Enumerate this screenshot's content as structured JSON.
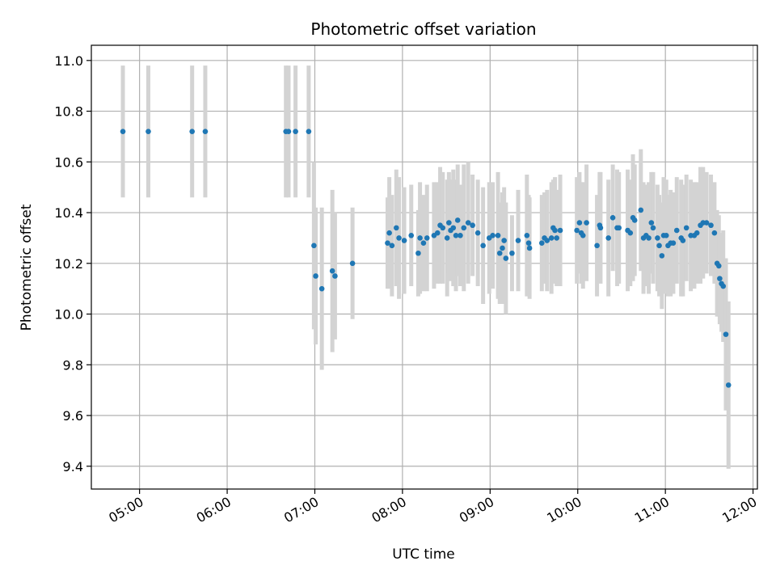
{
  "chart_data": {
    "type": "scatter",
    "title": "Photometric offset variation",
    "xlabel": "UTC time",
    "ylabel": "Photometric offset",
    "x_unit": "hours UTC",
    "xlim": [
      4.45,
      12.05
    ],
    "ylim": [
      9.31,
      11.06
    ],
    "x_ticks": [
      5,
      6,
      7,
      8,
      9,
      10,
      11,
      12
    ],
    "x_tick_labels": [
      "05:00",
      "06:00",
      "07:00",
      "08:00",
      "09:00",
      "10:00",
      "11:00",
      "12:00"
    ],
    "y_ticks": [
      9.4,
      9.6,
      9.8,
      10.0,
      10.2,
      10.4,
      10.6,
      10.8,
      11.0
    ],
    "y_tick_labels": [
      "9.4",
      "9.6",
      "9.8",
      "10.0",
      "10.2",
      "10.4",
      "10.6",
      "10.8",
      "11.0"
    ],
    "grid": true,
    "colors": {
      "point": "#1f77b4",
      "errorbar": "#d3d3d3",
      "grid": "#b0b0b0"
    },
    "points": [
      [
        4.81,
        10.72,
        0.26
      ],
      [
        5.1,
        10.72,
        0.26
      ],
      [
        5.6,
        10.72,
        0.26
      ],
      [
        5.75,
        10.72,
        0.26
      ],
      [
        6.67,
        10.72,
        0.26
      ],
      [
        6.7,
        10.72,
        0.26
      ],
      [
        6.78,
        10.72,
        0.26
      ],
      [
        6.93,
        10.72,
        0.26
      ],
      [
        6.99,
        10.27,
        0.33
      ],
      [
        7.01,
        10.15,
        0.27
      ],
      [
        7.08,
        10.1,
        0.32
      ],
      [
        7.2,
        10.17,
        0.32
      ],
      [
        7.23,
        10.15,
        0.25
      ],
      [
        7.43,
        10.2,
        0.22
      ],
      [
        7.83,
        10.28,
        0.18
      ],
      [
        7.85,
        10.32,
        0.22
      ],
      [
        7.88,
        10.27,
        0.2
      ],
      [
        7.93,
        10.34,
        0.23
      ],
      [
        7.96,
        10.3,
        0.24
      ],
      [
        8.02,
        10.29,
        0.21
      ],
      [
        8.1,
        10.31,
        0.2
      ],
      [
        8.18,
        10.24,
        0.17
      ],
      [
        8.2,
        10.3,
        0.22
      ],
      [
        8.24,
        10.28,
        0.19
      ],
      [
        8.28,
        10.3,
        0.21
      ],
      [
        8.36,
        10.31,
        0.21
      ],
      [
        8.4,
        10.32,
        0.2
      ],
      [
        8.43,
        10.35,
        0.23
      ],
      [
        8.46,
        10.34,
        0.22
      ],
      [
        8.51,
        10.3,
        0.23
      ],
      [
        8.53,
        10.36,
        0.2
      ],
      [
        8.55,
        10.33,
        0.2
      ],
      [
        8.58,
        10.34,
        0.23
      ],
      [
        8.61,
        10.31,
        0.22
      ],
      [
        8.63,
        10.37,
        0.22
      ],
      [
        8.66,
        10.31,
        0.2
      ],
      [
        8.7,
        10.34,
        0.25
      ],
      [
        8.75,
        10.36,
        0.24
      ],
      [
        8.8,
        10.35,
        0.2
      ],
      [
        8.86,
        10.32,
        0.21
      ],
      [
        8.92,
        10.27,
        0.23
      ],
      [
        8.99,
        10.3,
        0.22
      ],
      [
        9.03,
        10.31,
        0.21
      ],
      [
        9.09,
        10.31,
        0.25
      ],
      [
        9.11,
        10.24,
        0.2
      ],
      [
        9.14,
        10.26,
        0.22
      ],
      [
        9.16,
        10.29,
        0.21
      ],
      [
        9.18,
        10.22,
        0.22
      ],
      [
        9.25,
        10.24,
        0.15
      ],
      [
        9.32,
        10.29,
        0.2
      ],
      [
        9.42,
        10.31,
        0.24
      ],
      [
        9.44,
        10.28,
        0.19
      ],
      [
        9.45,
        10.26,
        0.2
      ],
      [
        9.59,
        10.28,
        0.19
      ],
      [
        9.62,
        10.3,
        0.18
      ],
      [
        9.65,
        10.29,
        0.2
      ],
      [
        9.7,
        10.3,
        0.22
      ],
      [
        9.72,
        10.34,
        0.19
      ],
      [
        9.74,
        10.33,
        0.21
      ],
      [
        9.76,
        10.3,
        0.19
      ],
      [
        9.8,
        10.33,
        0.22
      ],
      [
        9.99,
        10.33,
        0.21
      ],
      [
        10.02,
        10.36,
        0.2
      ],
      [
        10.04,
        10.32,
        0.2
      ],
      [
        10.06,
        10.31,
        0.21
      ],
      [
        10.1,
        10.36,
        0.23
      ],
      [
        10.22,
        10.27,
        0.2
      ],
      [
        10.25,
        10.35,
        0.21
      ],
      [
        10.26,
        10.34,
        0.22
      ],
      [
        10.35,
        10.3,
        0.23
      ],
      [
        10.4,
        10.38,
        0.21
      ],
      [
        10.45,
        10.34,
        0.23
      ],
      [
        10.47,
        10.34,
        0.22
      ],
      [
        10.57,
        10.33,
        0.24
      ],
      [
        10.6,
        10.32,
        0.21
      ],
      [
        10.63,
        10.38,
        0.25
      ],
      [
        10.65,
        10.37,
        0.22
      ],
      [
        10.72,
        10.41,
        0.24
      ],
      [
        10.75,
        10.3,
        0.22
      ],
      [
        10.78,
        10.31,
        0.2
      ],
      [
        10.81,
        10.3,
        0.22
      ],
      [
        10.84,
        10.36,
        0.2
      ],
      [
        10.86,
        10.34,
        0.22
      ],
      [
        10.91,
        10.3,
        0.21
      ],
      [
        10.93,
        10.27,
        0.2
      ],
      [
        10.96,
        10.23,
        0.21
      ],
      [
        10.98,
        10.31,
        0.23
      ],
      [
        11.01,
        10.31,
        0.22
      ],
      [
        11.03,
        10.27,
        0.2
      ],
      [
        11.06,
        10.28,
        0.21
      ],
      [
        11.09,
        10.28,
        0.2
      ],
      [
        11.13,
        10.33,
        0.21
      ],
      [
        11.18,
        10.3,
        0.23
      ],
      [
        11.2,
        10.29,
        0.22
      ],
      [
        11.24,
        10.34,
        0.21
      ],
      [
        11.29,
        10.31,
        0.22
      ],
      [
        11.33,
        10.31,
        0.21
      ],
      [
        11.36,
        10.32,
        0.2
      ],
      [
        11.4,
        10.35,
        0.23
      ],
      [
        11.43,
        10.36,
        0.22
      ],
      [
        11.47,
        10.36,
        0.2
      ],
      [
        11.52,
        10.35,
        0.2
      ],
      [
        11.56,
        10.32,
        0.2
      ],
      [
        11.59,
        10.2,
        0.21
      ],
      [
        11.61,
        10.19,
        0.2
      ],
      [
        11.62,
        10.14,
        0.18
      ],
      [
        11.64,
        10.12,
        0.19
      ],
      [
        11.66,
        10.11,
        0.22
      ],
      [
        11.69,
        9.92,
        0.3
      ],
      [
        11.72,
        9.72,
        0.33
      ]
    ]
  }
}
